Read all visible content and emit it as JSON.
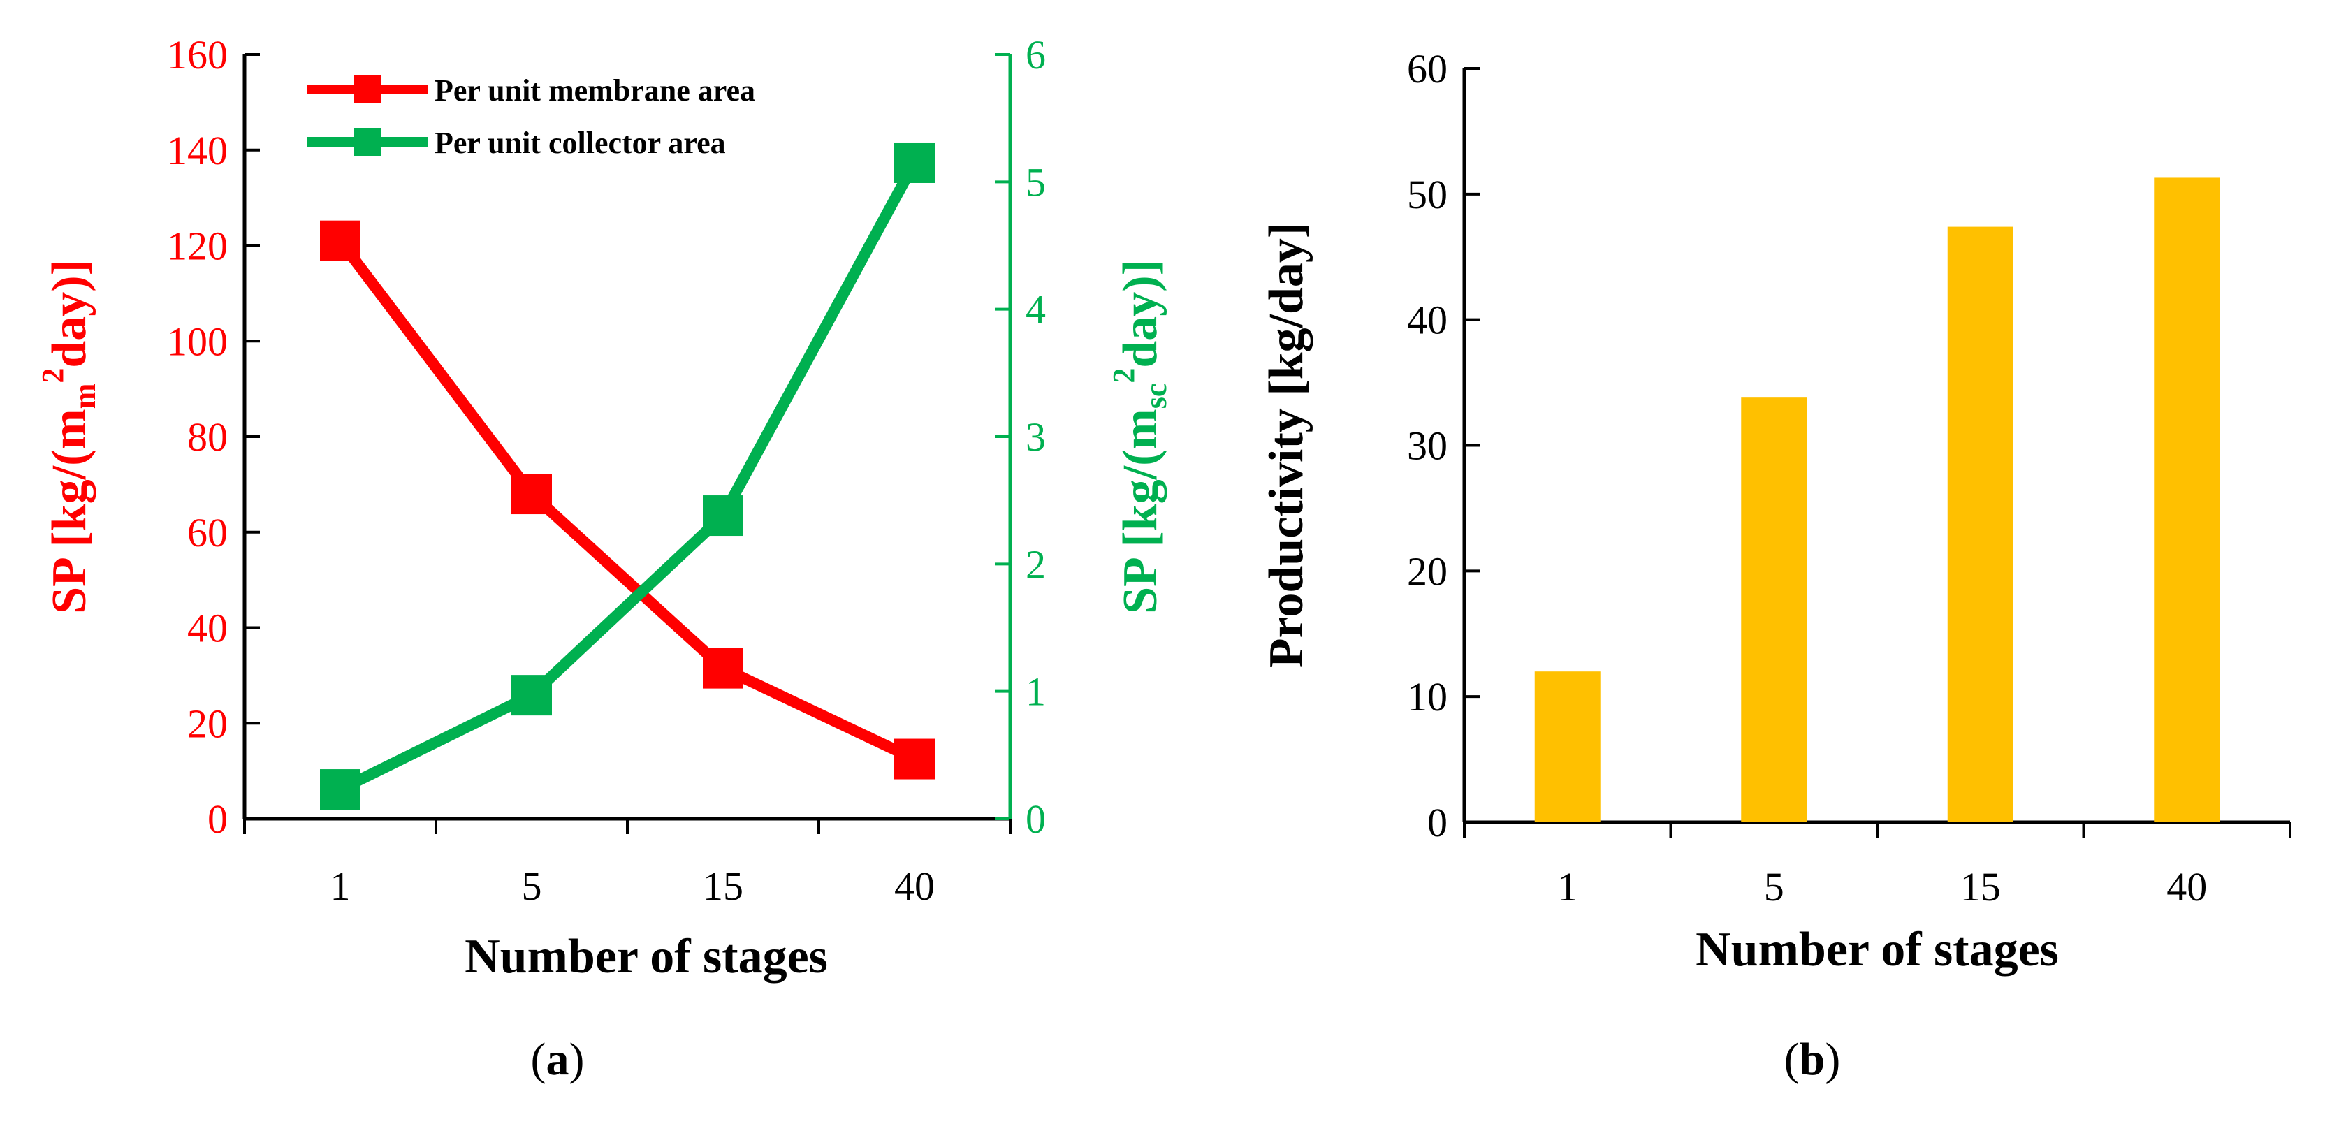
{
  "colors": {
    "membrane": "#ff0000",
    "collector": "#00b050",
    "bar": "#ffc000",
    "axis": "#000000"
  },
  "panel_a": {
    "label_open": "(",
    "label_letter": "a",
    "label_close": ")",
    "y_left_title": "SP [kg/(m",
    "y_left_sub": "m",
    "y_left_sup": "2",
    "y_left_title_end": "day)]",
    "y_right_title": "SP [kg/(m",
    "y_right_sub": "sc",
    "y_right_sup": "2",
    "y_right_title_end": "day)]"
  },
  "panel_b": {
    "label_open": "(",
    "label_letter": "b",
    "label_close": ")"
  },
  "chart_data": [
    {
      "type": "line",
      "title": "",
      "xlabel": "Number of stages",
      "ylabel": "SP [kg/(m_m^2 day)]",
      "ylabel_right": "SP [kg/(m_sc^2 day)]",
      "categories": [
        "1",
        "5",
        "15",
        "40"
      ],
      "ylim": [
        0,
        160
      ],
      "yticks": [
        0,
        20,
        40,
        60,
        80,
        100,
        120,
        140,
        160
      ],
      "ylim_right": [
        0,
        6
      ],
      "yticks_right": [
        0,
        1,
        2,
        3,
        4,
        5,
        6
      ],
      "legend_position": "top-left",
      "grid": false,
      "series": [
        {
          "name": "Per unit membrane area",
          "axis": "left",
          "values": [
            121,
            68,
            31.5,
            12.5
          ]
        },
        {
          "name": "Per unit collector area",
          "axis": "right",
          "values": [
            0.23,
            0.97,
            2.38,
            5.15
          ]
        }
      ]
    },
    {
      "type": "bar",
      "title": "",
      "xlabel": "Number of stages",
      "ylabel": "Productivity [kg/day]",
      "categories": [
        "1",
        "5",
        "15",
        "40"
      ],
      "values": [
        12,
        33.8,
        47.4,
        51.3
      ],
      "ylim": [
        0,
        60
      ],
      "yticks": [
        0,
        10,
        20,
        30,
        40,
        50,
        60
      ],
      "grid": false
    }
  ]
}
